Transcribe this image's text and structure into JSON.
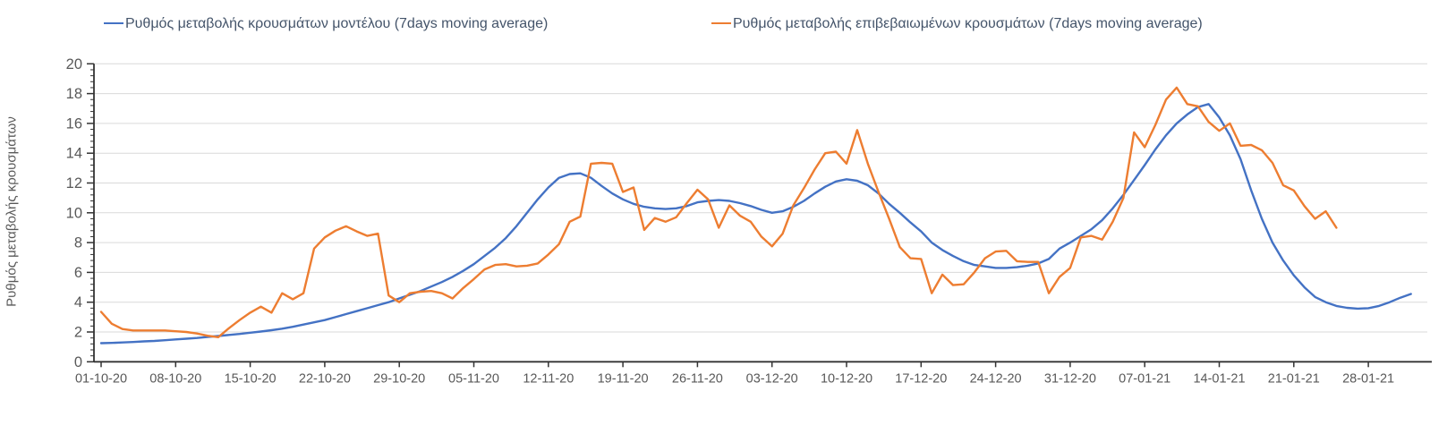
{
  "legend": {
    "items": [
      {
        "label": "Ρυθμός μεταβολής κρουσμάτων μοντέλου (7days moving average)",
        "color": "#4472C4"
      },
      {
        "label": "Ρυθμός μεταβολής επιβεβαιωμένων κρουσμάτων (7days moving average)",
        "color": "#ED7D31"
      }
    ]
  },
  "y_axis": {
    "title": "Ρυθμός μεταβολής κρουσμάτων",
    "tick_labels": [
      0,
      2,
      4,
      6,
      8,
      10,
      12,
      14,
      16,
      18,
      20
    ]
  },
  "x_axis": {
    "tick_labels": [
      "01-10-20",
      "08-10-20",
      "15-10-20",
      "22-10-20",
      "29-10-20",
      "05-11-20",
      "12-11-20",
      "19-11-20",
      "26-11-20",
      "03-12-20",
      "10-12-20",
      "17-12-20",
      "24-12-20",
      "31-12-20",
      "07-01-21",
      "14-01-21",
      "21-01-21",
      "28-01-21"
    ]
  },
  "colors": {
    "background": "#FFFFFF",
    "axis": "#333333",
    "grid": "#D9D9D9",
    "tick_text": "#595959",
    "legend_text": "#44546A",
    "model_line": "#4472C4",
    "confirmed_line": "#ED7D31"
  },
  "chart_data": {
    "type": "line",
    "title": "",
    "xlabel": "",
    "ylabel": "Ρυθμός μεταβολής κρουσμάτων",
    "ylim": [
      0,
      20
    ],
    "ytick_step": 2,
    "grid": "horizontal",
    "legend_position": "top",
    "x_first_label": "01-10-20",
    "x_tick_interval_days": 7,
    "point_interval_days": 1,
    "x_axis_tick_labels": [
      "01-10-20",
      "08-10-20",
      "15-10-20",
      "22-10-20",
      "29-10-20",
      "05-11-20",
      "12-11-20",
      "19-11-20",
      "26-11-20",
      "03-12-20",
      "10-12-20",
      "17-12-20",
      "24-12-20",
      "31-12-20",
      "07-01-21",
      "14-01-21",
      "21-01-21",
      "28-01-21"
    ],
    "series": [
      {
        "name": "Ρυθμός μεταβολής κρουσμάτων μοντέλου (7days moving average)",
        "color": "#4472C4",
        "first_point_date": "01-10-20",
        "values": [
          1.25,
          1.27,
          1.3,
          1.33,
          1.37,
          1.4,
          1.45,
          1.5,
          1.55,
          1.6,
          1.67,
          1.73,
          1.8,
          1.87,
          1.95,
          2.03,
          2.12,
          2.22,
          2.35,
          2.5,
          2.65,
          2.8,
          3.0,
          3.2,
          3.4,
          3.6,
          3.8,
          4.0,
          4.25,
          4.5,
          4.75,
          5.05,
          5.35,
          5.7,
          6.1,
          6.55,
          7.1,
          7.65,
          8.3,
          9.1,
          10.0,
          10.9,
          11.7,
          12.35,
          12.6,
          12.65,
          12.35,
          11.8,
          11.3,
          10.9,
          10.6,
          10.4,
          10.3,
          10.25,
          10.3,
          10.45,
          10.7,
          10.8,
          10.85,
          10.8,
          10.65,
          10.45,
          10.2,
          10.0,
          10.1,
          10.4,
          10.8,
          11.3,
          11.75,
          12.1,
          12.25,
          12.15,
          11.85,
          11.3,
          10.6,
          10.0,
          9.35,
          8.75,
          8.0,
          7.5,
          7.1,
          6.75,
          6.5,
          6.4,
          6.3,
          6.3,
          6.35,
          6.45,
          6.6,
          6.9,
          7.6,
          8.0,
          8.45,
          8.9,
          9.5,
          10.3,
          11.2,
          12.2,
          13.2,
          14.25,
          15.2,
          16.0,
          16.6,
          17.1,
          17.3,
          16.4,
          15.2,
          13.6,
          11.5,
          9.6,
          8.0,
          6.8,
          5.8,
          5.0,
          4.35,
          4.0,
          3.75,
          3.62,
          3.57,
          3.6,
          3.75,
          4.0,
          4.3,
          4.55
        ]
      },
      {
        "name": "Ρυθμός μεταβολής επιβεβαιωμένων κρουσμάτων (7days moving average)",
        "color": "#ED7D31",
        "first_point_date": "01-10-20",
        "values": [
          3.35,
          2.55,
          2.2,
          2.1,
          2.1,
          2.1,
          2.1,
          2.05,
          2.0,
          1.9,
          1.75,
          1.65,
          2.25,
          2.8,
          3.3,
          3.7,
          3.3,
          4.6,
          4.2,
          4.6,
          7.6,
          8.35,
          8.8,
          9.1,
          8.75,
          8.45,
          8.6,
          4.45,
          4.0,
          4.6,
          4.7,
          4.75,
          4.6,
          4.25,
          4.95,
          5.55,
          6.2,
          6.5,
          6.55,
          6.4,
          6.45,
          6.6,
          7.2,
          7.9,
          9.4,
          9.75,
          13.3,
          13.35,
          13.3,
          11.4,
          11.7,
          8.85,
          9.65,
          9.4,
          9.7,
          10.65,
          11.55,
          10.9,
          9.0,
          10.5,
          9.8,
          9.4,
          8.4,
          7.75,
          8.6,
          10.5,
          11.65,
          12.9,
          14.0,
          14.1,
          13.3,
          15.55,
          13.3,
          11.4,
          9.6,
          7.7,
          6.95,
          6.9,
          4.6,
          5.85,
          5.15,
          5.2,
          6.0,
          6.95,
          7.4,
          7.45,
          6.75,
          6.7,
          6.7,
          4.6,
          5.7,
          6.3,
          8.35,
          8.45,
          8.2,
          9.4,
          11.0,
          15.4,
          14.4,
          15.9,
          17.6,
          18.4,
          17.3,
          17.15,
          16.1,
          15.5,
          16.0,
          14.5,
          14.55,
          14.2,
          13.35,
          11.85,
          11.5,
          10.45,
          9.6,
          10.1,
          9.0
        ]
      }
    ]
  }
}
